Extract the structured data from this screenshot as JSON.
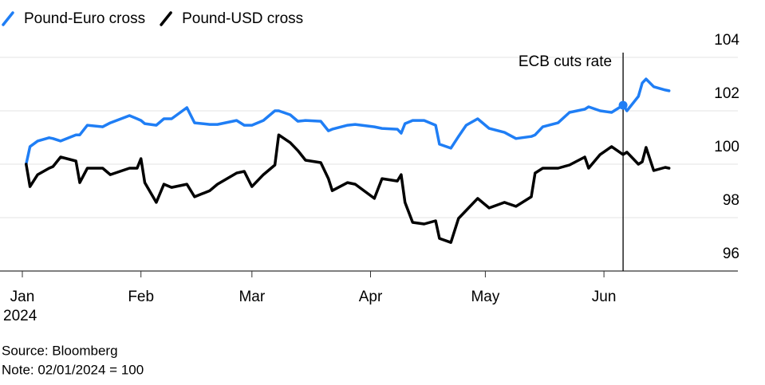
{
  "chart_data": {
    "type": "line",
    "x": [
      "2024-01-02",
      "2024-01-03",
      "2024-01-05",
      "2024-01-08",
      "2024-01-09",
      "2024-01-11",
      "2024-01-15",
      "2024-01-16",
      "2024-01-18",
      "2024-01-22",
      "2024-01-24",
      "2024-01-29",
      "2024-01-31",
      "2024-02-01",
      "2024-02-02",
      "2024-02-05",
      "2024-02-07",
      "2024-02-09",
      "2024-02-13",
      "2024-02-15",
      "2024-02-19",
      "2024-02-21",
      "2024-02-26",
      "2024-02-28",
      "2024-03-01",
      "2024-03-04",
      "2024-03-07",
      "2024-03-08",
      "2024-03-11",
      "2024-03-13",
      "2024-03-15",
      "2024-03-19",
      "2024-03-21",
      "2024-03-22",
      "2024-03-26",
      "2024-03-28",
      "2024-04-02",
      "2024-04-04",
      "2024-04-08",
      "2024-04-09",
      "2024-04-10",
      "2024-04-12",
      "2024-04-15",
      "2024-04-18",
      "2024-04-19",
      "2024-04-22",
      "2024-04-24",
      "2024-04-26",
      "2024-04-29",
      "2024-05-02",
      "2024-05-06",
      "2024-05-09",
      "2024-05-13",
      "2024-05-14",
      "2024-05-16",
      "2024-05-20",
      "2024-05-23",
      "2024-05-27",
      "2024-05-28",
      "2024-05-31",
      "2024-06-03",
      "2024-06-06",
      "2024-06-07",
      "2024-06-10",
      "2024-06-11",
      "2024-06-12",
      "2024-06-14",
      "2024-06-17",
      "2024-06-18"
    ],
    "series": [
      {
        "name": "Pound-Euro cross",
        "color": "#1f7ef5",
        "values": [
          100.0,
          100.66,
          100.87,
          100.99,
          100.96,
          100.87,
          101.1,
          101.1,
          101.46,
          101.4,
          101.55,
          101.82,
          101.7,
          101.64,
          101.52,
          101.46,
          101.7,
          101.7,
          102.12,
          101.55,
          101.49,
          101.49,
          101.64,
          101.46,
          101.46,
          101.64,
          102.0,
          102.0,
          101.85,
          101.61,
          101.64,
          101.61,
          101.25,
          101.31,
          101.46,
          101.49,
          101.4,
          101.34,
          101.31,
          101.16,
          101.52,
          101.64,
          101.64,
          101.46,
          100.75,
          100.6,
          101.04,
          101.46,
          101.7,
          101.34,
          101.19,
          100.96,
          101.04,
          101.1,
          101.4,
          101.55,
          101.94,
          102.06,
          102.15,
          102.0,
          101.94,
          102.21,
          102.0,
          102.54,
          103.04,
          103.19,
          102.9,
          102.78,
          102.75
        ]
      },
      {
        "name": "Pound-USD cross",
        "color": "#000000",
        "values": [
          100.0,
          99.16,
          99.61,
          99.85,
          99.91,
          100.27,
          100.12,
          99.31,
          99.85,
          99.85,
          99.61,
          99.85,
          99.85,
          100.21,
          99.31,
          98.57,
          99.25,
          99.13,
          99.25,
          98.78,
          99.01,
          99.25,
          99.67,
          99.73,
          99.16,
          99.61,
          99.97,
          101.1,
          100.81,
          100.51,
          100.15,
          100.06,
          99.46,
          99.01,
          99.31,
          99.25,
          98.72,
          99.46,
          99.37,
          99.61,
          98.57,
          97.82,
          97.76,
          97.88,
          97.22,
          97.07,
          97.97,
          98.27,
          98.72,
          98.36,
          98.57,
          98.42,
          98.78,
          99.67,
          99.85,
          99.85,
          99.97,
          100.27,
          99.85,
          100.36,
          100.66,
          100.36,
          100.45,
          100.0,
          100.09,
          100.63,
          99.76,
          99.88,
          99.85
        ]
      }
    ],
    "xlim": [
      "2024-01-01",
      "2024-07-06"
    ],
    "xticks": [
      {
        "value": "2024-01-01",
        "label": "Jan"
      },
      {
        "value": "2024-02-01",
        "label": "Feb"
      },
      {
        "value": "2024-03-01",
        "label": "Mar"
      },
      {
        "value": "2024-04-01",
        "label": "Apr"
      },
      {
        "value": "2024-05-01",
        "label": "May"
      },
      {
        "value": "2024-06-01",
        "label": "Jun"
      }
    ],
    "xtick_year": "2024",
    "ylim": [
      96,
      104
    ],
    "yticks": [
      96,
      98,
      100,
      102,
      104
    ],
    "grid": true,
    "annotation": {
      "text": "ECB cuts rate",
      "x": "2024-06-06",
      "series": 0
    },
    "source": "Source: Bloomberg",
    "note": "Note: 02/01/2024 = 100"
  }
}
